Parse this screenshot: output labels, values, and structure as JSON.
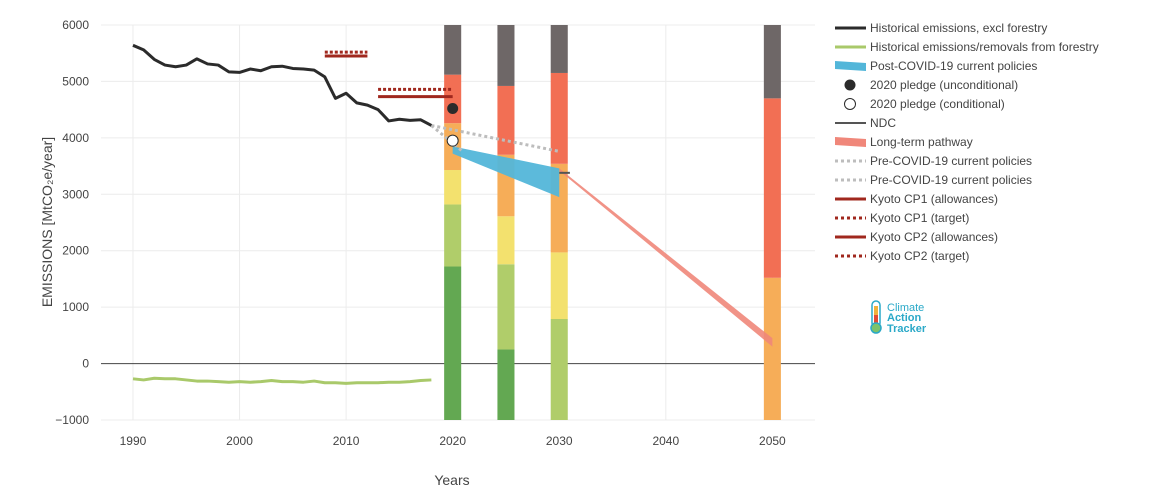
{
  "chart_data": {
    "type": "line",
    "xlabel": "Years",
    "ylabel": "EMISSIONS [MtCO₂e/year]",
    "xlim": [
      1987,
      2054
    ],
    "ylim": [
      -1000,
      6000
    ],
    "x_ticks": [
      1990,
      2000,
      2010,
      2020,
      2030,
      2040,
      2050
    ],
    "y_ticks": [
      -1000,
      0,
      1000,
      2000,
      3000,
      4000,
      5000,
      6000
    ],
    "x_tick_labels": [
      "1990",
      "2000",
      "2010",
      "2020",
      "2030",
      "2040",
      "2050"
    ],
    "y_tick_labels": [
      "−1000",
      "0",
      "1000",
      "2000",
      "3000",
      "4000",
      "5000",
      "6000"
    ],
    "grid": true,
    "legend_position": "right",
    "series": [
      {
        "name": "Historical emissions, excl forestry",
        "color": "#2b2b2b",
        "x": [
          1990,
          1991,
          1992,
          1993,
          1994,
          1995,
          1996,
          1997,
          1998,
          1999,
          2000,
          2001,
          2002,
          2003,
          2004,
          2005,
          2006,
          2007,
          2008,
          2009,
          2010,
          2011,
          2012,
          2013,
          2014,
          2015,
          2016,
          2017,
          2018
        ],
        "y": [
          5640,
          5560,
          5390,
          5290,
          5260,
          5290,
          5400,
          5310,
          5290,
          5170,
          5160,
          5220,
          5190,
          5260,
          5270,
          5230,
          5220,
          5200,
          5080,
          4700,
          4790,
          4620,
          4580,
          4500,
          4300,
          4330,
          4310,
          4320,
          4220
        ]
      },
      {
        "name": "Historical emissions/removals from forestry",
        "color": "#a9c96a",
        "x": [
          1990,
          1991,
          1992,
          1993,
          1994,
          1995,
          1996,
          1997,
          1998,
          1999,
          2000,
          2001,
          2002,
          2003,
          2004,
          2005,
          2006,
          2007,
          2008,
          2009,
          2010,
          2011,
          2012,
          2013,
          2014,
          2015,
          2016,
          2017,
          2018
        ],
        "y": [
          -270,
          -290,
          -260,
          -270,
          -270,
          -290,
          -310,
          -310,
          -320,
          -330,
          -320,
          -330,
          -320,
          -300,
          -320,
          -320,
          -330,
          -310,
          -340,
          -340,
          -350,
          -340,
          -340,
          -340,
          -330,
          -330,
          -320,
          -300,
          -290
        ]
      },
      {
        "name": "Post-COVID-19 current policies",
        "color": "#53b6d9",
        "upper": [
          [
            2020,
            3850
          ],
          [
            2030,
            3460
          ]
        ],
        "lower": [
          [
            2020,
            3720
          ],
          [
            2030,
            2950
          ]
        ]
      },
      {
        "name": "2020 pledge (unconditional)",
        "color": "#2b2b2b",
        "x": [
          2020
        ],
        "y": [
          4520
        ]
      },
      {
        "name": "2020 pledge (conditional)",
        "color": "#2b2b2b",
        "x": [
          2020
        ],
        "y": [
          3950
        ]
      },
      {
        "name": "NDC",
        "color": "#555555",
        "x": [
          2030,
          2031
        ],
        "y": [
          3380,
          3380
        ]
      },
      {
        "name": "Long-term pathway",
        "color": "#f0877a",
        "upper": [
          [
            2030,
            3460
          ],
          [
            2050,
            450
          ]
        ],
        "lower": [
          [
            2030,
            3420
          ],
          [
            2050,
            300
          ]
        ]
      },
      {
        "name": "Pre-COVID-19 current policies",
        "color": "#bdbdbd",
        "x": [
          2018,
          2030
        ],
        "y": [
          4220,
          3760
        ]
      },
      {
        "name": "Pre-COVID-19 current policies",
        "color": "#bdbdbd",
        "x": [
          2018,
          2021
        ],
        "y": [
          4220,
          3750
        ]
      },
      {
        "name": "Kyoto CP1 (allowances)",
        "color": "#a0281e",
        "x": [
          2008,
          2012
        ],
        "y": [
          5450,
          5450
        ]
      },
      {
        "name": "Kyoto CP1 (target)",
        "color": "#a0281e",
        "x": [
          2008,
          2012
        ],
        "y": [
          5520,
          5520
        ]
      },
      {
        "name": "Kyoto CP2 (allowances)",
        "color": "#a0281e",
        "x": [
          2013,
          2020
        ],
        "y": [
          4730,
          4730
        ]
      },
      {
        "name": "Kyoto CP2 (target)",
        "color": "#a0281e",
        "x": [
          2013,
          2020
        ],
        "y": [
          4860,
          4860
        ]
      }
    ],
    "rating_bars": [
      {
        "x": 2020,
        "segments": [
          {
            "from": -1000,
            "to": 1720,
            "color": "#63a852"
          },
          {
            "from": 1720,
            "to": 2820,
            "color": "#b0cd6a"
          },
          {
            "from": 2820,
            "to": 3430,
            "color": "#f3e16e"
          },
          {
            "from": 3430,
            "to": 4260,
            "color": "#f6ad58"
          },
          {
            "from": 4260,
            "to": 5120,
            "color": "#f26f54"
          },
          {
            "from": 5120,
            "to": 6000,
            "color": "#6e6767"
          }
        ]
      },
      {
        "x": 2025,
        "segments": [
          {
            "from": -1000,
            "to": 250,
            "color": "#63a852"
          },
          {
            "from": 250,
            "to": 1760,
            "color": "#b0cd6a"
          },
          {
            "from": 1760,
            "to": 2610,
            "color": "#f3e16e"
          },
          {
            "from": 2610,
            "to": 3700,
            "color": "#f6ad58"
          },
          {
            "from": 3700,
            "to": 4920,
            "color": "#f26f54"
          },
          {
            "from": 4920,
            "to": 6000,
            "color": "#6e6767"
          }
        ]
      },
      {
        "x": 2030,
        "segments": [
          {
            "from": -1000,
            "to": 790,
            "color": "#b0cd6a"
          },
          {
            "from": 790,
            "to": 1970,
            "color": "#f3e16e"
          },
          {
            "from": 1970,
            "to": 3540,
            "color": "#f6ad58"
          },
          {
            "from": 3540,
            "to": 5150,
            "color": "#f26f54"
          },
          {
            "from": 5150,
            "to": 6000,
            "color": "#6e6767"
          }
        ]
      },
      {
        "x": 2050,
        "segments": [
          {
            "from": -1000,
            "to": 1520,
            "color": "#f6ad58"
          },
          {
            "from": 1520,
            "to": 4700,
            "color": "#f26f54"
          },
          {
            "from": 4700,
            "to": 6000,
            "color": "#6e6767"
          }
        ]
      }
    ],
    "bar_width_years": 1.6,
    "legend": [
      {
        "label": "Historical emissions, excl forestry",
        "style": "line",
        "color": "#2b2b2b"
      },
      {
        "label": "Historical emissions/removals from forestry",
        "style": "line",
        "color": "#a9c96a"
      },
      {
        "label": "Post-COVID-19 current policies",
        "style": "band",
        "color": "#53b6d9"
      },
      {
        "label": "2020 pledge (unconditional)",
        "style": "dot-filled",
        "color": "#2b2b2b"
      },
      {
        "label": "2020 pledge (conditional)",
        "style": "dot-open",
        "color": "#2b2b2b"
      },
      {
        "label": "NDC",
        "style": "thin-line",
        "color": "#555555"
      },
      {
        "label": "Long-term pathway",
        "style": "band",
        "color": "#f0877a"
      },
      {
        "label": "Pre-COVID-19 current policies",
        "style": "dotted",
        "color": "#bdbdbd"
      },
      {
        "label": "Pre-COVID-19 current policies",
        "style": "dotted",
        "color": "#bdbdbd"
      },
      {
        "label": "Kyoto CP1 (allowances)",
        "style": "line",
        "color": "#a0281e"
      },
      {
        "label": "Kyoto CP1 (target)",
        "style": "dotted",
        "color": "#a0281e"
      },
      {
        "label": "Kyoto CP2 (allowances)",
        "style": "line",
        "color": "#a0281e"
      },
      {
        "label": "Kyoto CP2 (target)",
        "style": "dotted",
        "color": "#a0281e"
      }
    ]
  },
  "logo": {
    "line1": "Climate",
    "line2": "Action",
    "line3": "Tracker"
  }
}
